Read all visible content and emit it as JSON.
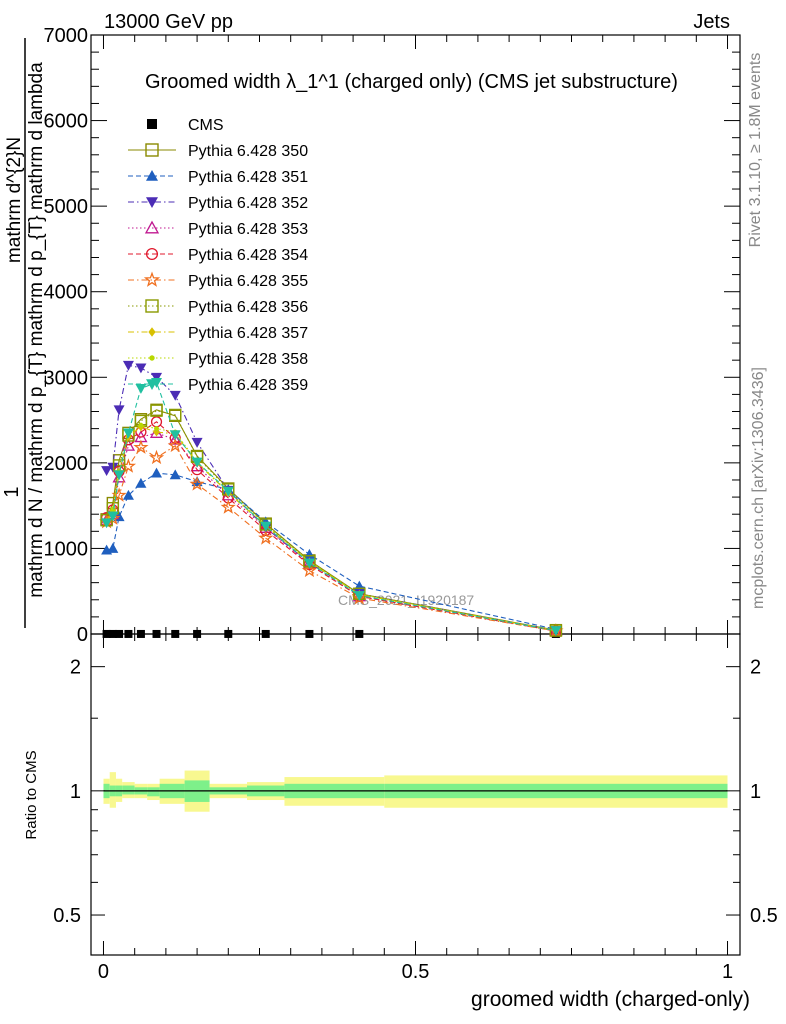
{
  "header": {
    "left": "13000 GeV pp",
    "right": "Jets"
  },
  "side": {
    "rivet": "Rivet 3.1.10, ≥ 1.8M events",
    "mcplots": "mcplots.cern.ch [arXiv:1306.3436]"
  },
  "ylabel_main": {
    "one": "1",
    "numerator": "mathrm d^{2}N",
    "denominator": "mathrm d N / mathrm d p_{T} mathrm d p_{T} mathrm d lambda"
  },
  "ylabel_ratio": "Ratio to CMS",
  "xlabel": "groomed width (charged-only)",
  "watermark": "CMS_2021_I1920187",
  "chart_data": [
    {
      "type": "line",
      "title": "Groomed width λ_1^1 (charged only) (CMS jet substructure)",
      "xlim": [
        -0.02,
        1.02
      ],
      "ylim": [
        0,
        7000
      ],
      "yticks": [
        0,
        1000,
        2000,
        3000,
        4000,
        5000,
        6000,
        7000
      ],
      "yticklabels": [
        "0",
        "1000",
        "2000",
        "3000",
        "4000",
        "5000",
        "6000",
        "7000"
      ],
      "grid": false,
      "legend_position": "top-left",
      "x": [
        0.005,
        0.015,
        0.025,
        0.04,
        0.06,
        0.085,
        0.115,
        0.15,
        0.2,
        0.26,
        0.33,
        0.41,
        0.725
      ],
      "series": [
        {
          "name": "CMS",
          "color": "#000000",
          "marker": "square-filled",
          "dash": "none",
          "values": [
            0.5,
            0.5,
            0.5,
            0.5,
            0.5,
            0.5,
            0.5,
            0.5,
            0.5,
            0.5,
            0.5,
            0.5,
            0.5
          ]
        },
        {
          "name": "Pythia 6.428 350",
          "color": "#8a8a00",
          "marker": "square-open",
          "dash": "solid",
          "values": [
            1340,
            1530,
            2030,
            2350,
            2510,
            2620,
            2550,
            2080,
            1700,
            1290,
            860,
            470,
            45
          ]
        },
        {
          "name": "Pythia 6.428 351",
          "color": "#1f5fbf",
          "marker": "triangle-up-filled",
          "dash": "dashed",
          "values": [
            980,
            1000,
            1370,
            1620,
            1760,
            1880,
            1860,
            1780,
            1690,
            1310,
            930,
            560,
            55
          ]
        },
        {
          "name": "Pythia 6.428 352",
          "color": "#4b2cb5",
          "marker": "triangle-down-filled",
          "dash": "dashdot",
          "values": [
            1910,
            1950,
            2620,
            3140,
            3110,
            3000,
            2790,
            2240,
            1680,
            1240,
            830,
            470,
            40
          ]
        },
        {
          "name": "Pythia 6.428 353",
          "color": "#c01890",
          "marker": "triangle-up-open",
          "dash": "dotted",
          "values": [
            1330,
            1400,
            1830,
            2200,
            2300,
            2350,
            2270,
            1960,
            1620,
            1240,
            820,
            440,
            35
          ]
        },
        {
          "name": "Pythia 6.428 354",
          "color": "#e0182c",
          "marker": "circle-open",
          "dash": "dashed",
          "values": [
            1360,
            1450,
            1900,
            2270,
            2360,
            2480,
            2290,
            1920,
            1590,
            1210,
            810,
            440,
            35
          ]
        },
        {
          "name": "Pythia 6.428 355",
          "color": "#f07020",
          "marker": "star-open",
          "dash": "dashdot",
          "values": [
            1310,
            1350,
            1620,
            1960,
            2180,
            2060,
            2200,
            1750,
            1480,
            1120,
            740,
            420,
            35
          ]
        },
        {
          "name": "Pythia 6.428 356",
          "color": "#8a9a00",
          "marker": "square-open",
          "dash": "dotted",
          "values": [
            1330,
            1470,
            1970,
            2320,
            2490,
            2610,
            2560,
            2070,
            1690,
            1280,
            850,
            470,
            40
          ]
        },
        {
          "name": "Pythia 6.428 357",
          "color": "#d8c000",
          "marker": "diamond-filled",
          "dash": "dashdot",
          "values": [
            1310,
            1440,
            1880,
            2310,
            2420,
            2360,
            2340,
            2000,
            1650,
            1260,
            840,
            460,
            40
          ]
        },
        {
          "name": "Pythia 6.428 358",
          "color": "#b8d800",
          "marker": "dot",
          "dash": "dotted",
          "values": [
            1320,
            1460,
            1900,
            2330,
            2440,
            2400,
            2360,
            2010,
            1660,
            1270,
            845,
            465,
            40
          ]
        },
        {
          "name": "Pythia 6.428 359",
          "color": "#20c0a0",
          "marker": "triangle-down-filled",
          "dash": "dashed",
          "values": [
            1300,
            1380,
            1860,
            2350,
            2870,
            2940,
            2330,
            2010,
            1670,
            1260,
            830,
            450,
            40
          ]
        }
      ]
    },
    {
      "type": "area",
      "ylabel": "Ratio to CMS",
      "xlim": [
        -0.02,
        1.02
      ],
      "ylim": [
        0.4,
        2.4
      ],
      "log_y": true,
      "yticks": [
        0.5,
        1,
        2
      ],
      "yticklabels": [
        "0.5",
        "1",
        "2"
      ],
      "xticks": [
        0,
        0.5,
        1
      ],
      "xticklabels": [
        "0",
        "0.5",
        "1"
      ],
      "reference_line": 1,
      "bins": [
        {
          "lo": 0.0,
          "hi": 0.01,
          "inner": [
            0.96,
            1.04
          ],
          "outer": [
            0.93,
            1.07
          ]
        },
        {
          "lo": 0.01,
          "hi": 0.02,
          "inner": [
            0.97,
            1.03
          ],
          "outer": [
            0.91,
            1.11
          ]
        },
        {
          "lo": 0.02,
          "hi": 0.03,
          "inner": [
            0.97,
            1.03
          ],
          "outer": [
            0.94,
            1.07
          ]
        },
        {
          "lo": 0.03,
          "hi": 0.05,
          "inner": [
            0.98,
            1.03
          ],
          "outer": [
            0.96,
            1.05
          ]
        },
        {
          "lo": 0.05,
          "hi": 0.07,
          "inner": [
            0.98,
            1.02
          ],
          "outer": [
            0.96,
            1.04
          ]
        },
        {
          "lo": 0.07,
          "hi": 0.09,
          "inner": [
            0.97,
            1.02
          ],
          "outer": [
            0.95,
            1.04
          ]
        },
        {
          "lo": 0.09,
          "hi": 0.13,
          "inner": [
            0.96,
            1.04
          ],
          "outer": [
            0.93,
            1.07
          ]
        },
        {
          "lo": 0.13,
          "hi": 0.17,
          "inner": [
            0.94,
            1.06
          ],
          "outer": [
            0.89,
            1.12
          ]
        },
        {
          "lo": 0.17,
          "hi": 0.23,
          "inner": [
            0.98,
            1.02
          ],
          "outer": [
            0.96,
            1.04
          ]
        },
        {
          "lo": 0.23,
          "hi": 0.29,
          "inner": [
            0.97,
            1.03
          ],
          "outer": [
            0.95,
            1.05
          ]
        },
        {
          "lo": 0.29,
          "hi": 0.45,
          "inner": [
            0.96,
            1.04
          ],
          "outer": [
            0.92,
            1.08
          ]
        },
        {
          "lo": 0.45,
          "hi": 1.0,
          "inner": [
            0.96,
            1.04
          ],
          "outer": [
            0.91,
            1.09
          ]
        }
      ],
      "colors": {
        "inner": "#7ef08a",
        "outer": "#f8f890"
      }
    }
  ]
}
